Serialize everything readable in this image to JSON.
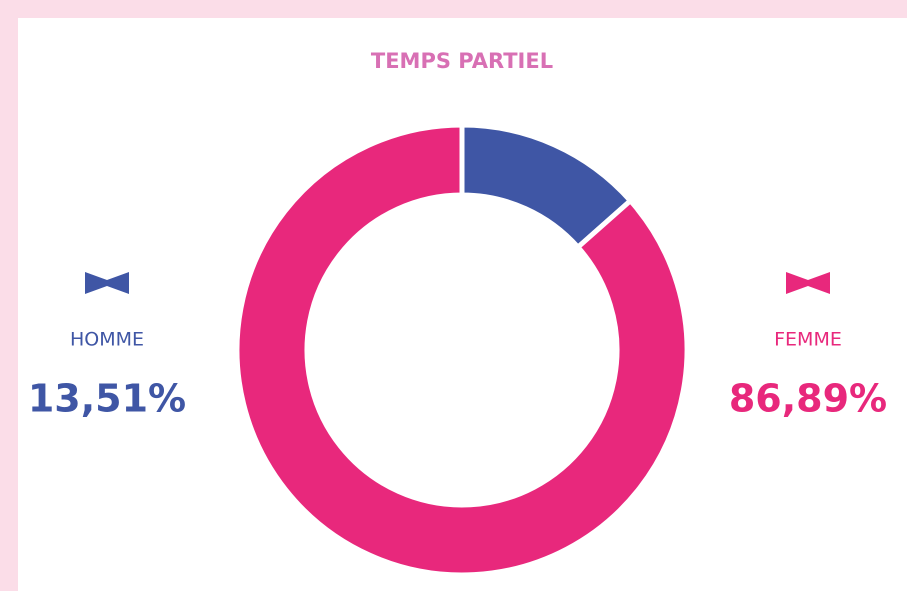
{
  "chart_data": {
    "type": "pie",
    "donut": true,
    "title": "TEMPS PARTIEL",
    "categories": [
      "HOMME",
      "FEMME"
    ],
    "values": [
      13.51,
      86.89
    ],
    "value_labels": [
      "13,51%",
      "86,89%"
    ],
    "colors": [
      "#3f56a5",
      "#e8287c"
    ],
    "title_color": "#d870b4"
  }
}
